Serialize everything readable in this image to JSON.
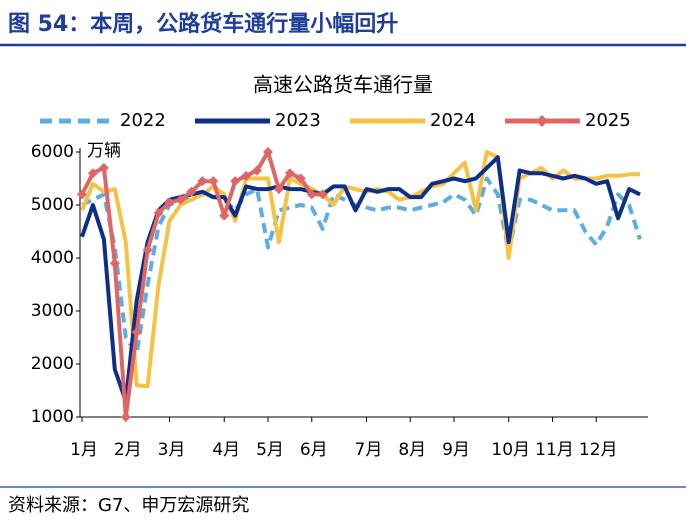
{
  "header": {
    "title": "图 54：本周，公路货车通行量小幅回升"
  },
  "chart_data": {
    "type": "line",
    "title": "高速公路货车通行量",
    "y_unit": "万辆",
    "categories": [
      "1月",
      null,
      null,
      null,
      "2月",
      null,
      null,
      null,
      "3月",
      null,
      null,
      null,
      null,
      "4月",
      null,
      null,
      null,
      "5月",
      null,
      null,
      null,
      "6月",
      null,
      null,
      null,
      null,
      "7月",
      null,
      null,
      null,
      "8月",
      null,
      null,
      null,
      "9月",
      null,
      null,
      null,
      null,
      "10月",
      null,
      null,
      null,
      "11月",
      null,
      null,
      null,
      "12月",
      null,
      null,
      null,
      null
    ],
    "ylim": [
      1000,
      6000
    ],
    "yticks": [
      1000,
      2000,
      3000,
      4000,
      5000,
      6000
    ],
    "grid": false,
    "legend": "top",
    "series": [
      {
        "name": "2022",
        "color": "#5aaee5",
        "style": "dashed",
        "values": [
          5000,
          5100,
          5200,
          4200,
          2500,
          2200,
          3500,
          4600,
          5000,
          5100,
          5150,
          5200,
          5150,
          5100,
          4900,
          5200,
          5300,
          4200,
          4900,
          4950,
          5000,
          4950,
          4550,
          5200,
          5100,
          5000,
          4950,
          4900,
          4950,
          4950,
          4900,
          4950,
          5000,
          5050,
          5200,
          5100,
          4800,
          5500,
          5200,
          4100,
          5100,
          5100,
          5000,
          4900,
          4900,
          4900,
          4500,
          4250,
          4600,
          5200,
          5000,
          4350
        ]
      },
      {
        "name": "2023",
        "color": "#0d2e8a",
        "style": "solid",
        "values": [
          4400,
          5000,
          4350,
          1900,
          1300,
          3200,
          4300,
          4900,
          5100,
          5150,
          5200,
          5250,
          5150,
          5150,
          4800,
          5350,
          5300,
          5300,
          5350,
          5300,
          5300,
          5250,
          5200,
          5350,
          5350,
          4900,
          5300,
          5250,
          5300,
          5300,
          5150,
          5150,
          5400,
          5450,
          5500,
          5450,
          5500,
          5700,
          5900,
          4300,
          5650,
          5600,
          5600,
          5550,
          5500,
          5550,
          5500,
          5400,
          5450,
          4750,
          5300,
          5200
        ]
      },
      {
        "name": "2024",
        "color": "#f5c244",
        "style": "solid",
        "values": [
          4900,
          5400,
          5250,
          5300,
          4300,
          1600,
          1580,
          3500,
          4700,
          5000,
          5100,
          5200,
          5350,
          5200,
          4700,
          5500,
          5500,
          5500,
          4300,
          5500,
          5400,
          5300,
          5200,
          5000,
          5350,
          5300,
          5250,
          5300,
          5250,
          5100,
          5150,
          5250,
          5350,
          5400,
          5600,
          5800,
          4900,
          6000,
          5900,
          4000,
          5500,
          5600,
          5700,
          5500,
          5650,
          5500,
          5500,
          5500,
          5550,
          5550,
          5580,
          5580
        ]
      },
      {
        "name": "2025",
        "color": "#e06666",
        "style": "solid",
        "marker": "diamond",
        "values": [
          5200,
          5600,
          5700,
          3900,
          1000,
          2600,
          4150,
          4850,
          5050,
          5100,
          5250,
          5450,
          5450,
          4800,
          5450,
          5550,
          5650,
          6000,
          5300,
          5600,
          5500,
          5200,
          5200,
          null,
          null,
          null,
          null,
          null,
          null,
          null,
          null,
          null,
          null,
          null,
          null,
          null,
          null,
          null,
          null,
          null,
          null,
          null,
          null,
          null,
          null,
          null,
          null,
          null,
          null,
          null,
          null,
          null
        ]
      }
    ]
  },
  "source": "资料来源：G7、申万宏源研究"
}
